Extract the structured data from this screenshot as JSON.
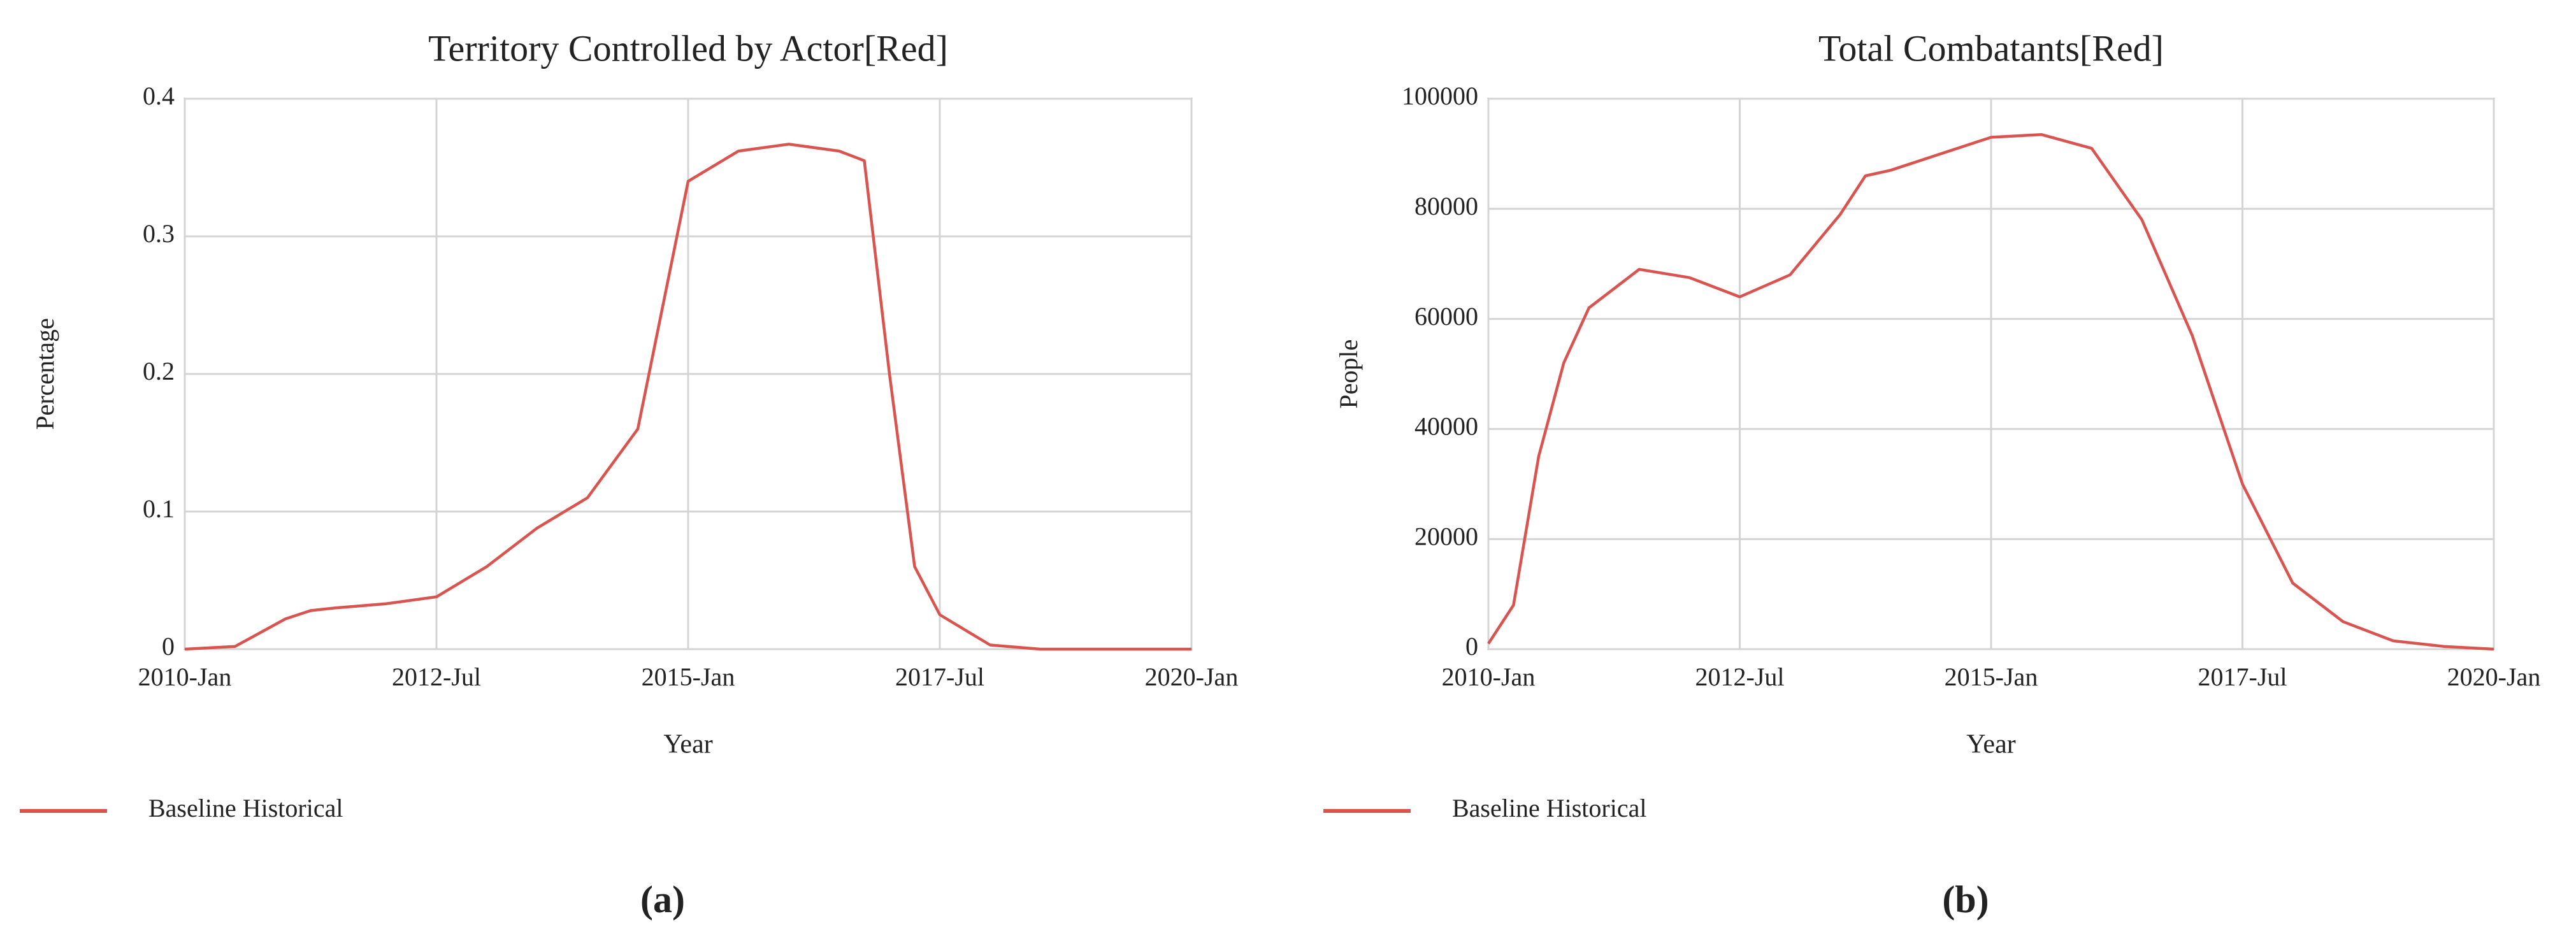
{
  "chart_data": [
    {
      "type": "line",
      "title": "Territory Controlled by Actor[Red]",
      "x_label": "Year",
      "y_label": "Percentage",
      "caption": "(a)",
      "x": [
        "2010-Jan",
        "2010-Jul",
        "2011-Jan",
        "2011-Apr",
        "2011-Jul",
        "2012-Jan",
        "2012-Jul",
        "2013-Jan",
        "2013-Jul",
        "2014-Jan",
        "2014-Jul",
        "2015-Jan",
        "2015-Jul",
        "2016-Jan",
        "2016-Jul",
        "2016-Oct",
        "2017-Jan",
        "2017-Apr",
        "2017-Jul",
        "2018-Jan",
        "2018-Jul",
        "2019-Jan",
        "2019-Jul",
        "2020-Jan"
      ],
      "series": [
        {
          "name": "Baseline Historical",
          "color": "#d9534f",
          "values": [
            0,
            0.002,
            0.022,
            0.028,
            0.03,
            0.033,
            0.038,
            0.06,
            0.088,
            0.11,
            0.16,
            0.34,
            0.362,
            0.367,
            0.362,
            0.355,
            0.2,
            0.06,
            0.025,
            0.003,
            0,
            0,
            0,
            0
          ]
        }
      ],
      "xlim": [
        "2010-Jan",
        "2020-Jan"
      ],
      "xticks": [
        "2010-Jan",
        "2012-Jul",
        "2015-Jan",
        "2017-Jul",
        "2020-Jan"
      ],
      "ylim": [
        0,
        0.4
      ],
      "yticks": [
        0,
        0.1,
        0.2,
        0.3,
        0.4
      ],
      "grid": true,
      "legend": "bottom-left"
    },
    {
      "type": "line",
      "title": "Total Combatants[Red]",
      "x_label": "Year",
      "y_label": "People",
      "caption": "(b)",
      "x": [
        "2010-Jan",
        "2010-Apr",
        "2010-Jul",
        "2010-Oct",
        "2011-Jan",
        "2011-Jul",
        "2012-Jan",
        "2012-Jul",
        "2013-Jan",
        "2013-Jul",
        "2013-Oct",
        "2014-Jan",
        "2014-Jul",
        "2015-Jan",
        "2015-Jul",
        "2016-Jan",
        "2016-Jul",
        "2017-Jan",
        "2017-Jul",
        "2018-Jan",
        "2018-Jul",
        "2019-Jan",
        "2019-Jul",
        "2020-Jan"
      ],
      "series": [
        {
          "name": "Baseline Historical",
          "color": "#d9534f",
          "values": [
            1000,
            8000,
            35000,
            52000,
            62000,
            69000,
            67500,
            64000,
            68000,
            79000,
            86000,
            87000,
            90000,
            93000,
            93500,
            91000,
            78000,
            57000,
            30000,
            12000,
            5000,
            1500,
            500,
            0
          ]
        }
      ],
      "xlim": [
        "2010-Jan",
        "2020-Jan"
      ],
      "xticks": [
        "2010-Jan",
        "2012-Jul",
        "2015-Jan",
        "2017-Jul",
        "2020-Jan"
      ],
      "ylim": [
        0,
        100000
      ],
      "yticks": [
        0,
        20000,
        40000,
        60000,
        80000,
        100000
      ],
      "grid": true,
      "legend": "bottom-left"
    }
  ]
}
